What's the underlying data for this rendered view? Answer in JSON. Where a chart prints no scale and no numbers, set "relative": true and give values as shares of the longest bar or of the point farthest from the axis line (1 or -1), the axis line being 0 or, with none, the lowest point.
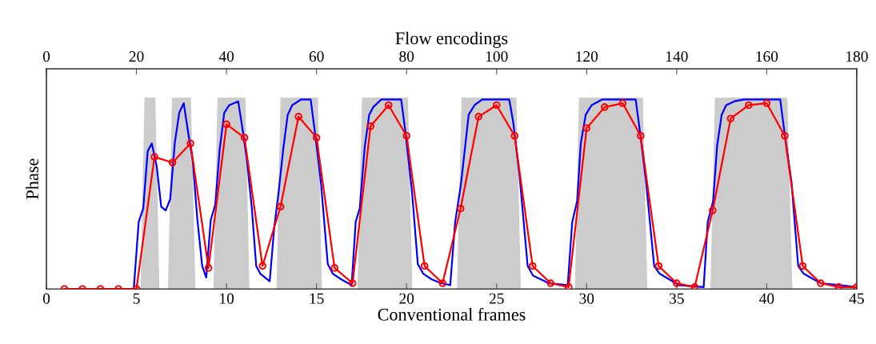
{
  "chart_data": {
    "type": "line",
    "relative": true,
    "xlabel": "Conventional frames",
    "x2label": "Flow encodings",
    "ylabel": "Phase",
    "xlim": [
      0,
      45
    ],
    "xticks": [
      0,
      5,
      10,
      15,
      20,
      25,
      30,
      35,
      40,
      45
    ],
    "x2lim": [
      0,
      180
    ],
    "x2ticks": [
      0,
      20,
      40,
      60,
      80,
      100,
      120,
      140,
      160,
      180
    ],
    "grid": false,
    "legend": false,
    "series": [
      {
        "type": "area",
        "axis": "x2",
        "color": "#cccccc",
        "x": [
          0,
          20.9,
          21.8,
          24.2,
          25.1,
          27.0,
          27.9,
          32.1,
          33.1,
          37.1,
          38.0,
          44.2,
          45.1,
          51.1,
          52.0,
          60.3,
          61.2,
          69.1,
          70.1,
          80.3,
          81.3,
          91.2,
          92.2,
          104.4,
          105.4,
          117.4,
          118.3,
          132.5,
          133.5,
          147.5,
          148.5,
          164.6,
          165.7,
          180
        ],
        "values": [
          0,
          0,
          1,
          1,
          0,
          0,
          1,
          1,
          0,
          0,
          1,
          1,
          0,
          0,
          1,
          1,
          0,
          0,
          1,
          1,
          0,
          0,
          1,
          1,
          0,
          0,
          1,
          1,
          0,
          0,
          1,
          1,
          0,
          0
        ]
      },
      {
        "type": "line",
        "axis": "x2",
        "color": "#0000ff",
        "x": [
          19.4,
          20.5,
          21.5,
          22.5,
          23.4,
          24.5,
          25.5,
          26.5,
          27.5,
          28.5,
          29.5,
          30.5,
          31.6,
          32.5,
          33.5,
          34.6,
          35.5,
          36.5,
          37.5,
          38.5,
          39.5,
          40.6,
          42.6,
          43.6,
          44.5,
          45.6,
          46.6,
          47.5,
          49.6,
          50.6,
          51.6,
          52.6,
          53.6,
          54.6,
          56.6,
          58.7,
          59.8,
          61.0,
          62.5,
          63.6,
          65.5,
          67.8,
          68.7,
          69.6,
          70.7,
          71.7,
          72.6,
          74.4,
          76.1,
          78.8,
          79.7,
          81.2,
          82.5,
          83.7,
          85.6,
          87.7,
          89.7,
          90.8,
          92.1,
          93.8,
          95.1,
          96.8,
          99.2,
          102.8,
          103.7,
          105.1,
          106.9,
          108.1,
          111.6,
          115.8,
          116.8,
          117.9,
          118.7,
          119.8,
          121.1,
          123.5,
          125.8,
          130.9,
          131.8,
          133.2,
          135.0,
          136.2,
          139.8,
          140.3,
          146.0,
          146.9,
          148.1,
          149.0,
          150.0,
          151.0,
          152.8,
          154.9,
          163.0,
          164.0,
          165.5,
          167.0,
          168.2,
          172.0,
          176.2,
          180.0
        ],
        "values": [
          0,
          0.35,
          0.42,
          0.72,
          0.76,
          0.64,
          0.43,
          0.41,
          0.47,
          0.76,
          0.92,
          0.97,
          0.8,
          0.67,
          0.37,
          0.12,
          0.06,
          0.36,
          0.44,
          0.73,
          0.92,
          0.96,
          0.98,
          0.83,
          0.68,
          0.43,
          0.12,
          0.08,
          0.04,
          0.32,
          0.51,
          0.73,
          0.91,
          0.96,
          0.99,
          0.99,
          0.79,
          0.55,
          0.13,
          0.08,
          0.05,
          0.02,
          0.35,
          0.42,
          0.74,
          0.91,
          0.95,
          0.99,
          0.99,
          0.99,
          0.83,
          0.51,
          0.13,
          0.08,
          0.05,
          0.03,
          0.02,
          0.35,
          0.55,
          0.91,
          0.96,
          0.99,
          0.99,
          0.99,
          0.87,
          0.59,
          0.12,
          0.07,
          0.03,
          0.02,
          0.35,
          0.46,
          0.76,
          0.91,
          0.96,
          0.99,
          0.99,
          0.99,
          0.83,
          0.56,
          0.12,
          0.08,
          0.03,
          0.02,
          0.01,
          0.35,
          0.46,
          0.75,
          0.91,
          0.96,
          0.98,
          0.99,
          0.99,
          0.81,
          0.56,
          0.12,
          0.08,
          0.03,
          0.02,
          0.01
        ]
      },
      {
        "color": "#ff0000",
        "marker": "circle",
        "x": [
          1,
          2,
          3,
          4,
          5,
          6,
          7,
          8,
          9,
          10,
          11,
          12,
          13,
          14,
          15,
          16,
          17,
          18,
          19,
          20,
          21,
          22,
          23,
          24,
          25,
          26,
          27,
          28,
          29,
          30,
          31,
          32,
          33,
          34,
          35,
          36,
          37,
          38,
          39,
          40,
          41,
          42,
          43,
          44,
          45
        ],
        "values": [
          0,
          0,
          0,
          0,
          0,
          0.69,
          0.66,
          0.76,
          0.11,
          0.86,
          0.79,
          0.12,
          0.43,
          0.9,
          0.79,
          0.11,
          0.03,
          0.85,
          0.96,
          0.8,
          0.12,
          0.03,
          0.42,
          0.9,
          0.96,
          0.8,
          0.12,
          0.03,
          0.01,
          0.84,
          0.95,
          0.97,
          0.8,
          0.12,
          0.03,
          0.01,
          0.41,
          0.89,
          0.96,
          0.97,
          0.8,
          0.12,
          0.03,
          0.01,
          0.01
        ]
      }
    ]
  }
}
